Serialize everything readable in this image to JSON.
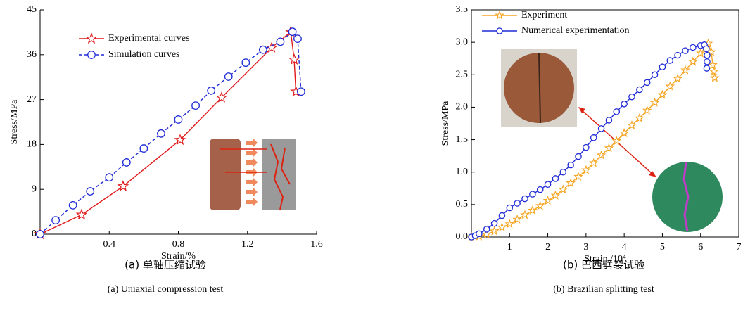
{
  "chart_data": [
    {
      "type": "line",
      "xlabel": "Strain/%",
      "ylabel": "Stress/MPa",
      "caption": "(a)  单轴压缩试验",
      "caption_en": "(a)  Uniaxial compression test",
      "xlim": [
        0,
        1.6
      ],
      "xticks": [
        0.4,
        0.8,
        1.2,
        1.6
      ],
      "ylim": [
        0,
        45
      ],
      "yticks": [
        0,
        9,
        18,
        27,
        36,
        45
      ],
      "box": false,
      "legend": "upper left",
      "series": [
        {
          "name": "Experimental curves",
          "color": "#e0191b",
          "marker": "star",
          "linestyle": "solid",
          "x": [
            0,
            0.24,
            0.48,
            0.81,
            1.05,
            1.34,
            1.45,
            1.47,
            1.48
          ],
          "values": [
            0,
            3.9,
            9.6,
            18.9,
            27.4,
            37.4,
            40.6,
            35,
            28.6
          ]
        },
        {
          "name": "Simulation curves",
          "color": "#1f2bd6",
          "marker": "circle",
          "linestyle": "dashed",
          "x": [
            0,
            0.09,
            0.19,
            0.29,
            0.4,
            0.5,
            0.6,
            0.7,
            0.8,
            0.9,
            0.99,
            1.09,
            1.19,
            1.29,
            1.39,
            1.46,
            1.49,
            1.51
          ],
          "values": [
            0,
            2.8,
            5.8,
            8.6,
            11.4,
            14.4,
            17.2,
            20.2,
            23,
            25.8,
            28.8,
            31.6,
            34.4,
            37,
            38.6,
            40.6,
            39.2,
            28.6
          ]
        }
      ]
    },
    {
      "type": "line",
      "xlabel": "Strain /10⁴",
      "ylabel": "Stress/MPa",
      "caption": "(b)  巴西劈裂试验",
      "caption_en": "(b)  Brazilian splitting test",
      "xlim": [
        0,
        7
      ],
      "xticks": [
        1,
        2,
        3,
        4,
        5,
        6,
        7
      ],
      "ylim": [
        0,
        3.5
      ],
      "yticks": [
        {
          "value": 0,
          "label": "0.0"
        },
        0.5,
        {
          "value": 1,
          "label": "1.0"
        },
        1.5,
        {
          "value": 2,
          "label": "2.0"
        },
        2.5,
        {
          "value": 3,
          "label": "3.0"
        },
        3.5
      ],
      "box": true,
      "legend": "upper left",
      "series": [
        {
          "name": "Experiment",
          "color": "#f5a623",
          "marker": "star",
          "linestyle": "solid",
          "x": [
            0,
            0.2,
            0.4,
            0.6,
            0.8,
            1.0,
            1.2,
            1.4,
            1.6,
            1.8,
            2.0,
            2.2,
            2.4,
            2.6,
            2.8,
            3.0,
            3.2,
            3.4,
            3.6,
            3.8,
            4.0,
            4.2,
            4.4,
            4.6,
            4.8,
            5.0,
            5.2,
            5.4,
            5.6,
            5.8,
            6.0,
            6.2,
            6.28,
            6.32,
            6.35,
            6.37
          ],
          "values": [
            0,
            0.01,
            0.04,
            0.09,
            0.15,
            0.2,
            0.27,
            0.34,
            0.41,
            0.48,
            0.56,
            0.64,
            0.73,
            0.83,
            0.93,
            1.03,
            1.14,
            1.26,
            1.37,
            1.48,
            1.6,
            1.72,
            1.83,
            1.95,
            2.07,
            2.19,
            2.32,
            2.44,
            2.57,
            2.7,
            2.83,
            2.98,
            2.85,
            2.65,
            2.55,
            2.45
          ]
        },
        {
          "name": "Numerical experimentation",
          "color": "#1f2bd6",
          "marker": "circle",
          "linestyle": "solid",
          "x": [
            0,
            0.1,
            0.2,
            0.4,
            0.6,
            0.8,
            1.0,
            1.2,
            1.4,
            1.6,
            1.8,
            2.0,
            2.2,
            2.4,
            2.6,
            2.8,
            3.0,
            3.2,
            3.4,
            3.6,
            3.8,
            4.0,
            4.2,
            4.4,
            4.6,
            4.8,
            5.0,
            5.2,
            5.4,
            5.6,
            5.8,
            6.0,
            6.1,
            6.15,
            6.17,
            6.17,
            6.16
          ],
          "values": [
            0,
            0.02,
            0.05,
            0.12,
            0.21,
            0.33,
            0.45,
            0.52,
            0.59,
            0.66,
            0.73,
            0.81,
            0.9,
            1.0,
            1.11,
            1.24,
            1.38,
            1.53,
            1.67,
            1.8,
            1.93,
            2.05,
            2.16,
            2.27,
            2.38,
            2.5,
            2.62,
            2.72,
            2.8,
            2.87,
            2.92,
            2.95,
            2.96,
            2.9,
            2.8,
            2.7,
            2.6
          ]
        }
      ]
    }
  ]
}
